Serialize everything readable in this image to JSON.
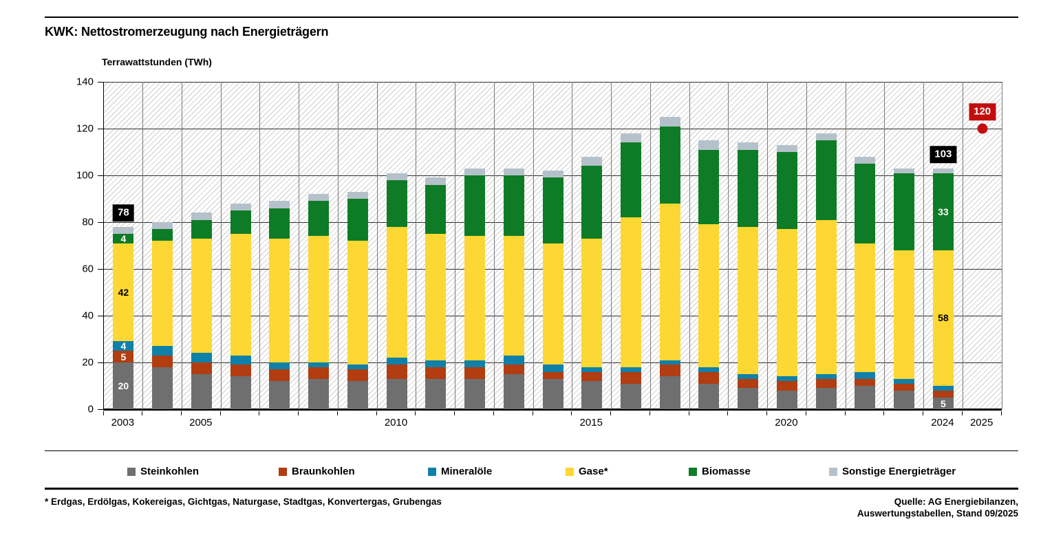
{
  "header": {
    "title": "KWK: Nettostromerzeugung nach Energieträgern"
  },
  "chart_data": {
    "type": "bar",
    "stacked": true,
    "title": "KWK: Nettostromerzeugung nach Energieträgern",
    "ylabel": "Terrawattstunden (TWh)",
    "xlabel": "",
    "ylim": [
      0,
      140
    ],
    "grid": true,
    "categories": [
      "2003",
      "2004",
      "2005",
      "2006",
      "2007",
      "2008",
      "2009",
      "2010",
      "2011",
      "2012",
      "2013",
      "2014",
      "2015",
      "2016",
      "2017",
      "2018",
      "2019",
      "2020",
      "2021",
      "2022",
      "2023",
      "2024"
    ],
    "series": [
      {
        "key": "steinkohlen",
        "name": "Steinkohlen",
        "color": "#6f6f6f",
        "values": [
          20,
          18,
          15,
          14,
          12,
          13,
          12,
          13,
          13,
          13,
          15,
          13,
          12,
          11,
          14,
          11,
          9,
          8,
          9,
          10,
          8,
          5
        ]
      },
      {
        "key": "braunkohlen",
        "name": "Braunkohlen",
        "color": "#b13d11",
        "values": [
          5,
          5,
          5,
          5,
          5,
          5,
          5,
          6,
          5,
          5,
          4,
          3,
          4,
          5,
          5,
          5,
          4,
          4,
          4,
          3,
          3,
          3
        ]
      },
      {
        "key": "mineraloele",
        "name": "Mineralöle",
        "color": "#0f81a8",
        "values": [
          4,
          4,
          4,
          4,
          3,
          2,
          2,
          3,
          3,
          3,
          4,
          3,
          2,
          2,
          2,
          2,
          2,
          2,
          2,
          3,
          2,
          2
        ]
      },
      {
        "key": "gase",
        "name": "Gase*",
        "color": "#fdd733",
        "values": [
          42,
          45,
          49,
          52,
          53,
          54,
          53,
          56,
          54,
          53,
          51,
          52,
          55,
          64,
          67,
          61,
          63,
          63,
          66,
          55,
          55,
          58
        ]
      },
      {
        "key": "biomasse",
        "name": "Biomasse",
        "color": "#0e7c26",
        "values": [
          4,
          5,
          8,
          10,
          13,
          15,
          18,
          20,
          21,
          26,
          26,
          28,
          31,
          32,
          33,
          32,
          33,
          33,
          34,
          34,
          33,
          33
        ]
      },
      {
        "key": "sonstige",
        "name": "Sonstige Energieträger",
        "color": "#b5c1ca",
        "values": [
          3,
          3,
          3,
          3,
          3,
          3,
          3,
          3,
          3,
          3,
          3,
          3,
          4,
          4,
          4,
          4,
          3,
          3,
          3,
          3,
          2,
          2
        ]
      }
    ],
    "yticks": [
      0,
      20,
      40,
      60,
      80,
      100,
      120,
      140
    ],
    "xticks": [
      {
        "label": "2003",
        "col": 0
      },
      {
        "label": "2005",
        "col": 2
      },
      {
        "label": "2010",
        "col": 7
      },
      {
        "label": "2015",
        "col": 12
      },
      {
        "label": "2020",
        "col": 17
      },
      {
        "label": "2024",
        "col": 21
      },
      {
        "label": "2025",
        "col": 22
      }
    ],
    "totals": [
      {
        "col": 0,
        "label": "78",
        "bg": "#000000",
        "fg": "#ffffff"
      },
      {
        "col": 21,
        "label": "103",
        "bg": "#000000",
        "fg": "#ffffff"
      }
    ],
    "segment_labels": [
      {
        "col": 0,
        "series": 0,
        "label": "20",
        "color": "#ffffff"
      },
      {
        "col": 0,
        "series": 1,
        "label": "5",
        "color": "#ffffff"
      },
      {
        "col": 0,
        "series": 2,
        "label": "4",
        "color": "#ffffff"
      },
      {
        "col": 0,
        "series": 3,
        "label": "42",
        "color": "#000000"
      },
      {
        "col": 0,
        "series": 4,
        "label": "4",
        "color": "#ffffff"
      },
      {
        "col": 21,
        "series": 0,
        "label": "5",
        "color": "#ffffff"
      },
      {
        "col": 21,
        "series": 3,
        "label": "58",
        "color": "#000000"
      },
      {
        "col": 21,
        "series": 4,
        "label": "33",
        "color": "#ffffff"
      }
    ],
    "forecast_point": {
      "year": "2025",
      "col": 22,
      "value": 120,
      "label": "120",
      "color": "#c20e0e"
    },
    "legend_position": "bottom"
  },
  "legend": {
    "items": [
      {
        "label": "Steinkohlen",
        "color": "#6f6f6f"
      },
      {
        "label": "Braunkohlen",
        "color": "#b13d11"
      },
      {
        "label": "Mineralöle",
        "color": "#0f81a8"
      },
      {
        "label": "Gase*",
        "color": "#fdd733"
      },
      {
        "label": "Biomasse",
        "color": "#0e7c26"
      },
      {
        "label": "Sonstige Energieträger",
        "color": "#b5c1ca"
      }
    ]
  },
  "footnote": "* Erdgas, Erdölgas, Kokereigas, Gichtgas, Naturgase, Stadtgas, Konvertergas, Grubengas",
  "source": {
    "line1": "Quelle: AG Energiebilanzen,",
    "line2": "Auswertungstabellen, Stand 09/2025"
  }
}
